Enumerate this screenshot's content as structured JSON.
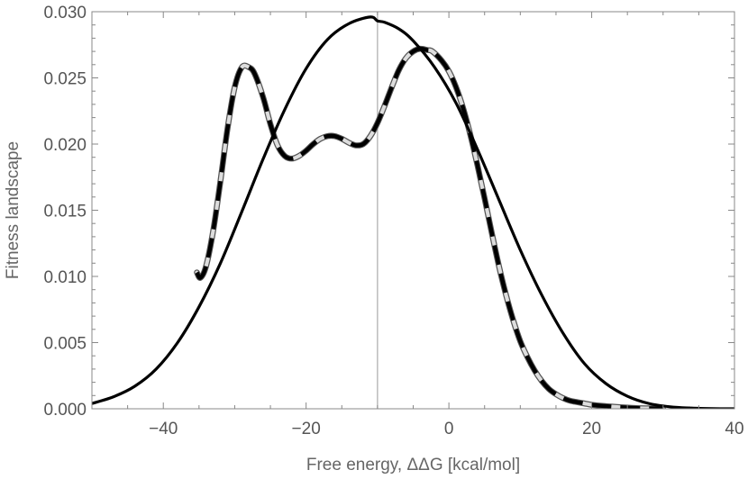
{
  "chart_data": {
    "type": "line",
    "title": "",
    "xlabel": "Free energy, ΔΔG [kcal/mol]",
    "ylabel": "Fitness landscape",
    "xlim": [
      -50,
      40
    ],
    "ylim": [
      0,
      0.03
    ],
    "xticks": [
      {
        "value": -40,
        "label": "−40"
      },
      {
        "value": -20,
        "label": "−20"
      },
      {
        "value": 0,
        "label": "0"
      },
      {
        "value": 20,
        "label": "20"
      },
      {
        "value": 40,
        "label": "40"
      }
    ],
    "yticks": [
      {
        "value": 0.0,
        "label": "0.000"
      },
      {
        "value": 0.005,
        "label": "0.005"
      },
      {
        "value": 0.01,
        "label": "0.010"
      },
      {
        "value": 0.015,
        "label": "0.015"
      },
      {
        "value": 0.02,
        "label": "0.020"
      },
      {
        "value": 0.025,
        "label": "0.025"
      },
      {
        "value": 0.03,
        "label": "0.030"
      }
    ],
    "reference_line": {
      "orientation": "vertical",
      "x": -10,
      "color": "#aaaaaa"
    },
    "grid": false,
    "frame": true,
    "series": [
      {
        "style": "solid",
        "color": "#000000",
        "x": [
          -50,
          -47,
          -44,
          -41,
          -38,
          -35,
          -32,
          -29,
          -26,
          -23,
          -20,
          -17,
          -14,
          -11,
          -10,
          -9,
          -7,
          -5,
          -2,
          1,
          4,
          7,
          10,
          13,
          16,
          19,
          22,
          25,
          28,
          31,
          34,
          37,
          40
        ],
        "y": [
          0.0004,
          0.0009,
          0.0017,
          0.003,
          0.005,
          0.0077,
          0.011,
          0.0149,
          0.0189,
          0.0226,
          0.0257,
          0.0279,
          0.0291,
          0.0296,
          0.0293,
          0.0292,
          0.0287,
          0.0278,
          0.0258,
          0.0231,
          0.0196,
          0.0158,
          0.012,
          0.0086,
          0.0057,
          0.0034,
          0.0019,
          0.00095,
          0.0004,
          0.00015,
          5e-05,
          1e-05,
          0.0
        ]
      },
      {
        "style": "dashed-black-white",
        "color": "#000000",
        "x": [
          -35.3,
          -34.8,
          -34,
          -33,
          -32,
          -31,
          -30,
          -29,
          -28,
          -27.2,
          -26,
          -25,
          -24,
          -23,
          -22,
          -21,
          -20,
          -19,
          -18,
          -17,
          -16,
          -15,
          -14,
          -13,
          -12,
          -11,
          -10,
          -9,
          -8,
          -7,
          -6,
          -5,
          -4,
          -3,
          -2.3,
          -1,
          0,
          1,
          2,
          3,
          4,
          5,
          6,
          7,
          8,
          9,
          10,
          11,
          12,
          13,
          14,
          15,
          16,
          17,
          18,
          19,
          20,
          22,
          24,
          26,
          28,
          30
        ],
        "y": [
          0.0103,
          0.0099,
          0.0108,
          0.0135,
          0.0172,
          0.0212,
          0.0243,
          0.0258,
          0.0258,
          0.0253,
          0.0235,
          0.0215,
          0.0199,
          0.0191,
          0.0189,
          0.0191,
          0.0195,
          0.02,
          0.0204,
          0.0206,
          0.0206,
          0.0204,
          0.0201,
          0.0199,
          0.02,
          0.0206,
          0.0216,
          0.0229,
          0.0243,
          0.0256,
          0.0265,
          0.027,
          0.0272,
          0.0271,
          0.027,
          0.0263,
          0.0255,
          0.0243,
          0.0227,
          0.0207,
          0.0184,
          0.0159,
          0.0133,
          0.0108,
          0.0086,
          0.0067,
          0.0051,
          0.0039,
          0.0029,
          0.0021,
          0.0015,
          0.0011,
          0.0008,
          0.0006,
          0.0005,
          0.0004,
          0.0003,
          0.0002,
          0.00012,
          6e-05,
          3e-05,
          1e-05
        ]
      }
    ]
  }
}
